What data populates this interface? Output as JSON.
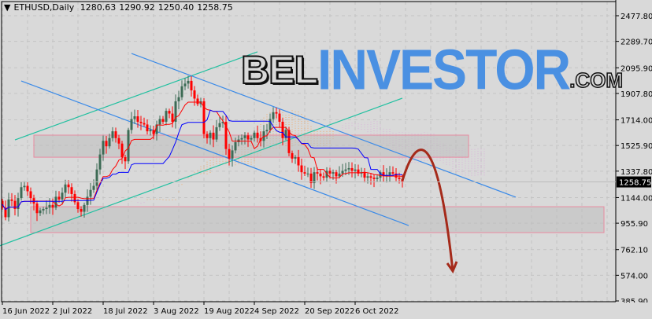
{
  "header": {
    "symbol_timeframe": "ETHUSD,Daily",
    "open": "1280.63",
    "high": "1290.92",
    "low": "1250.40",
    "close": "1258.75",
    "menu_icon": "triangle-down-icon"
  },
  "watermark": {
    "part1": "BEL",
    "part2": "INVESTOR",
    "part3": ".COM"
  },
  "colors": {
    "background": "#d9d9d9",
    "bull": "#3d6b55",
    "bear": "#ff0000",
    "tenkan": "#ff0000",
    "kijun": "#0000ff",
    "cloud_up": "#f5a050",
    "cloud_down": "#d9a8d9",
    "channel_teal": "#20c0a0",
    "channel_blue": "#3a8ae8",
    "zone_border": "#e88aa0",
    "forecast_arrow": "#a52a1a"
  },
  "chart_data": {
    "type": "candlestick",
    "start_date": "2022-06-16",
    "first_open": 1120,
    "closes": [
      1070,
      1000,
      1130,
      1120,
      1060,
      1140,
      1220,
      1230,
      1190,
      1140,
      1100,
      1030,
      1050,
      1060,
      1070,
      1090,
      1070,
      1150,
      1130,
      1180,
      1240,
      1220,
      1170,
      1110,
      1060,
      1040,
      1090,
      1150,
      1200,
      1230,
      1350,
      1460,
      1560,
      1520,
      1580,
      1630,
      1580,
      1540,
      1440,
      1410,
      1640,
      1720,
      1740,
      1700,
      1690,
      1680,
      1630,
      1640,
      1610,
      1680,
      1720,
      1700,
      1780,
      1760,
      1700,
      1850,
      1880,
      1960,
      1980,
      2000,
      1930,
      1870,
      1830,
      1850,
      1610,
      1580,
      1620,
      1570,
      1660,
      1690,
      1700,
      1500,
      1430,
      1490,
      1550,
      1570,
      1580,
      1600,
      1570,
      1580,
      1620,
      1580,
      1560,
      1630,
      1640,
      1720,
      1770,
      1760,
      1700,
      1580,
      1640,
      1470,
      1430,
      1440,
      1380,
      1330,
      1320,
      1320,
      1250,
      1330,
      1320,
      1300,
      1290,
      1340,
      1320,
      1330,
      1300,
      1320,
      1340,
      1350,
      1360,
      1340,
      1350,
      1320,
      1330,
      1290,
      1300,
      1290,
      1280,
      1290,
      1330,
      1300,
      1310,
      1330,
      1320,
      1290,
      1280,
      1258.75
    ],
    "y_ticks": [
      "2477.80",
      "2289.70",
      "2095.90",
      "1907.80",
      "1714.00",
      "1525.90",
      "1337.80",
      "1144.00",
      "955.90",
      "762.10",
      "574.00",
      "385.90"
    ],
    "ylim": [
      385.9,
      2477.8
    ],
    "x_ticks": [
      {
        "date": "2022-06-16",
        "label": "16 Jun 2022"
      },
      {
        "date": "2022-07-02",
        "label": "2 Jul 2022"
      },
      {
        "date": "2022-07-18",
        "label": "18 Jul 2022"
      },
      {
        "date": "2022-08-03",
        "label": "3 Aug 2022"
      },
      {
        "date": "2022-08-19",
        "label": "19 Aug 2022"
      },
      {
        "date": "2022-09-04",
        "label": "4 Sep 2022"
      },
      {
        "date": "2022-09-20",
        "label": "20 Sep 2022"
      },
      {
        "date": "2022-10-06",
        "label": "6 Oct 2022"
      }
    ],
    "current_price_label": "1258.75",
    "indicators": {
      "type": "ichimoku",
      "tenkan": 9,
      "kijun": 26,
      "senkou_b": 52
    },
    "grid": true,
    "trendlines": [
      {
        "name": "teal-channel-upper",
        "color": "#20c0a0",
        "from": [
          "2022-06-20",
          1567
        ],
        "to": [
          "2022-09-05",
          2213
        ]
      },
      {
        "name": "teal-channel-lower",
        "color": "#20c0a0",
        "from": [
          "2022-06-15",
          789
        ],
        "to": [
          "2022-10-21",
          1873
        ]
      },
      {
        "name": "blue-channel-upper",
        "color": "#3a8ae8",
        "from": [
          "2022-07-27",
          2201
        ],
        "to": [
          "2022-11-26",
          1147
        ]
      },
      {
        "name": "blue-channel-lower",
        "color": "#3a8ae8",
        "from": [
          "2022-06-22",
          1999
        ],
        "to": [
          "2022-10-23",
          939
        ]
      }
    ],
    "zones": [
      {
        "name": "resistance-zone",
        "from": "2022-06-26",
        "to": "2022-11-11",
        "top": 1602,
        "bottom": 1440
      },
      {
        "name": "support-zone",
        "from": "2022-06-25",
        "to": "2022-12-24",
        "top": 1077,
        "bottom": 887
      }
    ],
    "forecast_path": [
      [
        "2022-10-21",
        1268
      ],
      [
        "2022-10-29",
        1394
      ],
      [
        "2022-11-06",
        605
      ]
    ]
  }
}
